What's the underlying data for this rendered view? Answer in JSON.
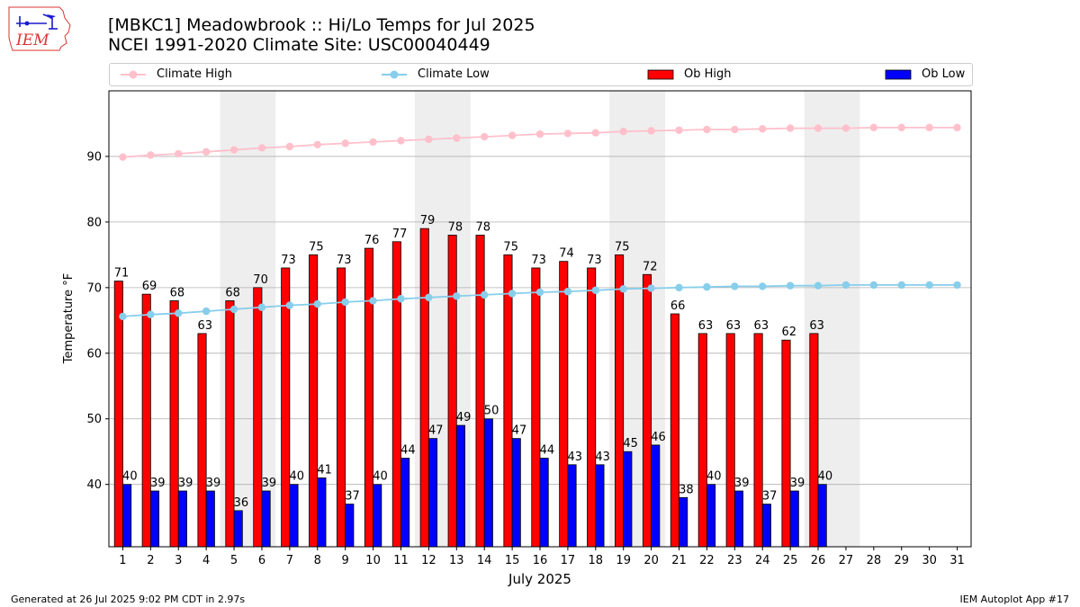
{
  "logo": {
    "text": "IEM"
  },
  "title_line1": "[MBKC1] Meadowbrook :: Hi/Lo Temps for Jul 2025",
  "title_line2": "NCEI 1991-2020 Climate Site: USC00040449",
  "footer_left": "Generated at 26 Jul 2025 9:02 PM CDT in 2.97s",
  "footer_right": "IEM Autoplot App #17",
  "colors": {
    "ob_high": "#ff0000",
    "ob_low": "#0000ff",
    "climate_high": "#ffc0cb",
    "climate_low": "#87ceeb",
    "weekend_band": "#eeeeee"
  },
  "chart_data": {
    "type": "bar",
    "xlabel": "July 2025",
    "ylabel": "Temperature °F",
    "ylim": [
      30.5,
      100
    ],
    "yticks": [
      40,
      50,
      60,
      70,
      80,
      90
    ],
    "grid": true,
    "legend_placement": "top",
    "categories": [
      "1",
      "2",
      "3",
      "4",
      "5",
      "6",
      "7",
      "8",
      "9",
      "10",
      "11",
      "12",
      "13",
      "14",
      "15",
      "16",
      "17",
      "18",
      "19",
      "20",
      "21",
      "22",
      "23",
      "24",
      "25",
      "26",
      "27",
      "28",
      "29",
      "30",
      "31"
    ],
    "weekend_days": [
      [
        5,
        6
      ],
      [
        12,
        13
      ],
      [
        19,
        20
      ],
      [
        26,
        27
      ]
    ],
    "series": [
      {
        "name": "Climate High",
        "kind": "line",
        "values": [
          89.9,
          90.2,
          90.4,
          90.7,
          91.0,
          91.3,
          91.5,
          91.8,
          92.0,
          92.2,
          92.4,
          92.6,
          92.8,
          93.0,
          93.2,
          93.4,
          93.5,
          93.6,
          93.8,
          93.9,
          94.0,
          94.1,
          94.1,
          94.2,
          94.3,
          94.3,
          94.3,
          94.4,
          94.4,
          94.4,
          94.4
        ]
      },
      {
        "name": "Climate Low",
        "kind": "line",
        "values": [
          65.6,
          65.9,
          66.1,
          66.4,
          66.7,
          67.0,
          67.3,
          67.5,
          67.8,
          68.0,
          68.3,
          68.5,
          68.7,
          68.9,
          69.1,
          69.3,
          69.4,
          69.6,
          69.8,
          69.9,
          70.0,
          70.1,
          70.2,
          70.2,
          70.3,
          70.3,
          70.4,
          70.4,
          70.4,
          70.4,
          70.4
        ]
      },
      {
        "name": "Ob High",
        "kind": "bar",
        "values": [
          71,
          69,
          68,
          63,
          68,
          70,
          73,
          75,
          73,
          76,
          77,
          79,
          78,
          78,
          75,
          73,
          74,
          73,
          75,
          72,
          66,
          63,
          63,
          63,
          62,
          63,
          null,
          null,
          null,
          null,
          null
        ],
        "labels": [
          "71",
          "69",
          "68",
          "63",
          "68",
          "70",
          "73",
          "75",
          "73",
          "76",
          "77",
          "79",
          "78",
          "78",
          "75",
          "73",
          "74",
          "73",
          "75",
          "72",
          "66",
          "63",
          "63",
          "63",
          "62",
          "63",
          "",
          "",
          "",
          "",
          ""
        ]
      },
      {
        "name": "Ob Low",
        "kind": "bar",
        "values": [
          40,
          39,
          39,
          39,
          36,
          39,
          40,
          41,
          37,
          40,
          44,
          47,
          49,
          50,
          47,
          44,
          43,
          43,
          45,
          46,
          38,
          40,
          39,
          37,
          39,
          40,
          null,
          null,
          null,
          null,
          null
        ],
        "labels": [
          "40",
          "39",
          "39",
          "39",
          "36",
          "39",
          "40",
          "41",
          "37",
          "40",
          "44",
          "47",
          "49",
          "50",
          "47",
          "44",
          "43",
          "43",
          "45",
          "46",
          "38",
          "40",
          "39",
          "37",
          "39",
          "40",
          "",
          "",
          "",
          "",
          ""
        ]
      }
    ]
  }
}
